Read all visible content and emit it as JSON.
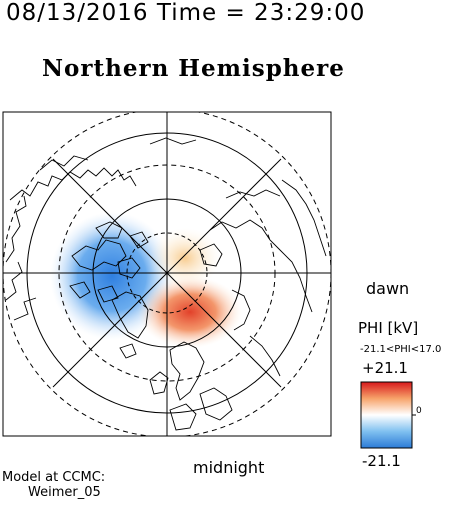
{
  "header": {
    "timestamp": "08/13/2016 Time = 23:29:00",
    "hemisphere": "Northern Hemisphere"
  },
  "map": {
    "labels": {
      "dawn": "dawn",
      "midnight": "midnight"
    },
    "projection": "polar stereographic, north pole centered",
    "potential_cells": [
      {
        "sign": "negative",
        "color": "#3a8be0",
        "region": "dusk side (left of pole)"
      },
      {
        "sign": "positive",
        "color": "#e0402a",
        "region": "dawn/midnight side (right-below pole)"
      }
    ]
  },
  "colorbar": {
    "title": "PHI [kV]",
    "range_text": "-21.1<PHI<17.0",
    "max_label": "+21.1",
    "min_label": "-21.1",
    "zero_label": "0",
    "colors": {
      "max": "#d7191c",
      "mid": "#ffffff",
      "min": "#2c7bd6"
    }
  },
  "footer": {
    "model_line1": "Model at CCMC:",
    "model_line2": "Weimer_05"
  }
}
